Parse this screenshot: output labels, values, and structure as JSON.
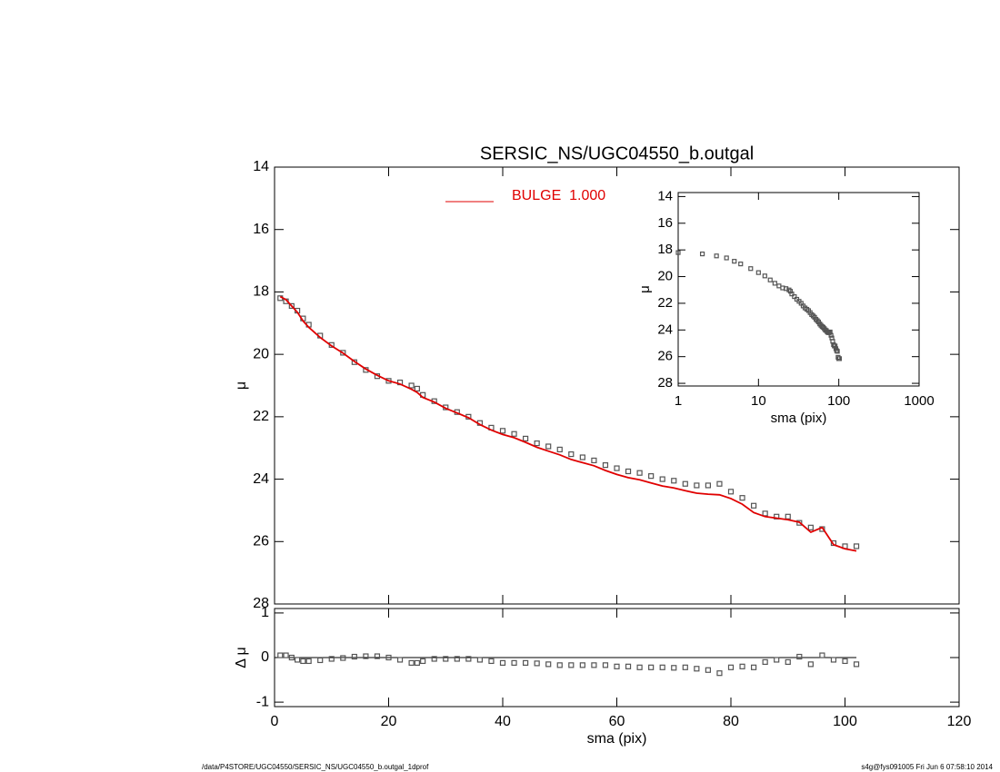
{
  "chart_data": [
    {
      "type": "line",
      "title": "SERSIC_NS/UGC04550_b.outgal",
      "ylabel": "μ",
      "x": [
        1,
        2,
        3,
        4,
        5,
        6,
        8,
        10,
        12,
        14,
        16,
        18,
        20,
        22,
        24,
        25,
        26,
        28,
        30,
        32,
        34,
        36,
        38,
        40,
        42,
        44,
        46,
        48,
        50,
        52,
        54,
        56,
        58,
        60,
        62,
        64,
        66,
        68,
        70,
        72,
        74,
        76,
        78,
        80,
        82,
        84,
        86,
        88,
        90,
        92,
        94,
        96,
        98,
        100,
        102
      ],
      "series": [
        {
          "color": "#555555",
          "style": "markers",
          "values": [
            18.2,
            18.3,
            18.45,
            18.6,
            18.85,
            19.05,
            19.4,
            19.7,
            19.95,
            20.25,
            20.5,
            20.7,
            20.85,
            20.9,
            21.0,
            21.1,
            21.3,
            21.5,
            21.7,
            21.85,
            22.0,
            22.2,
            22.35,
            22.45,
            22.55,
            22.7,
            22.85,
            22.95,
            23.05,
            23.2,
            23.3,
            23.4,
            23.55,
            23.65,
            23.75,
            23.8,
            23.9,
            24.0,
            24.05,
            24.15,
            24.2,
            24.2,
            24.15,
            24.4,
            24.6,
            24.85,
            25.1,
            25.2,
            25.2,
            25.4,
            25.55,
            25.6,
            26.05,
            26.15,
            26.15
          ]
        },
        {
          "name": "BULGE  1.000",
          "color": "#e00000",
          "style": "line",
          "values": [
            18.15,
            18.25,
            18.45,
            18.65,
            18.93,
            19.13,
            19.46,
            19.73,
            19.96,
            20.23,
            20.47,
            20.67,
            20.85,
            20.95,
            21.12,
            21.22,
            21.38,
            21.53,
            21.73,
            21.88,
            22.03,
            22.25,
            22.43,
            22.57,
            22.67,
            22.82,
            22.98,
            23.1,
            23.22,
            23.37,
            23.47,
            23.57,
            23.72,
            23.85,
            23.95,
            24.02,
            24.12,
            24.22,
            24.28,
            24.37,
            24.45,
            24.48,
            24.5,
            24.62,
            24.8,
            25.07,
            25.2,
            25.25,
            25.3,
            25.38,
            25.7,
            25.55,
            26.1,
            26.23,
            26.3
          ]
        }
      ],
      "xlim": [
        0,
        120
      ],
      "xticks": [
        0,
        20,
        40,
        60,
        80,
        100,
        120
      ],
      "show_xtick_labels": false,
      "ylim": [
        14,
        28
      ],
      "yticks": [
        14,
        16,
        18,
        20,
        22,
        24,
        26,
        28
      ],
      "y_inverted": true
    },
    {
      "type": "scatter",
      "xlabel": "sma (pix)",
      "ylabel": "Δ μ",
      "x": [
        1,
        2,
        3,
        4,
        5,
        6,
        8,
        10,
        12,
        14,
        16,
        18,
        20,
        22,
        24,
        25,
        26,
        28,
        30,
        32,
        34,
        36,
        38,
        40,
        42,
        44,
        46,
        48,
        50,
        52,
        54,
        56,
        58,
        60,
        62,
        64,
        66,
        68,
        70,
        72,
        74,
        76,
        78,
        80,
        82,
        84,
        86,
        88,
        90,
        92,
        94,
        96,
        98,
        100,
        102
      ],
      "series": [
        {
          "color": "#555555",
          "style": "markers",
          "values": [
            0.05,
            0.05,
            0,
            -0.05,
            -0.08,
            -0.08,
            -0.06,
            -0.03,
            -0.01,
            0.02,
            0.03,
            0.03,
            0,
            -0.05,
            -0.12,
            -0.12,
            -0.08,
            -0.03,
            -0.03,
            -0.03,
            -0.03,
            -0.05,
            -0.08,
            -0.12,
            -0.12,
            -0.12,
            -0.13,
            -0.15,
            -0.17,
            -0.17,
            -0.17,
            -0.17,
            -0.17,
            -0.2,
            -0.2,
            -0.22,
            -0.22,
            -0.22,
            -0.23,
            -0.22,
            -0.25,
            -0.28,
            -0.35,
            -0.22,
            -0.2,
            -0.22,
            -0.1,
            -0.05,
            -0.1,
            0.02,
            -0.15,
            0.05,
            -0.05,
            -0.08,
            -0.15
          ]
        }
      ],
      "xlim": [
        0,
        120
      ],
      "xticks": [
        0,
        20,
        40,
        60,
        80,
        100,
        120
      ],
      "show_xtick_labels": true,
      "ylim": [
        -1.1,
        1.1
      ],
      "yticks": [
        -1,
        0,
        1
      ],
      "y_inverted": false,
      "zero_line": true
    },
    {
      "type": "scatter",
      "xlabel": "sma (pix)",
      "ylabel": "μ",
      "xscale": "log",
      "x": [
        1,
        2,
        3,
        4,
        5,
        6,
        8,
        10,
        12,
        14,
        16,
        18,
        20,
        22,
        24,
        25,
        26,
        28,
        30,
        32,
        34,
        36,
        38,
        40,
        42,
        44,
        46,
        48,
        50,
        52,
        54,
        56,
        58,
        60,
        62,
        64,
        66,
        68,
        70,
        72,
        74,
        76,
        78,
        80,
        82,
        84,
        86,
        88,
        90,
        92,
        94,
        96,
        98,
        100,
        102
      ],
      "series": [
        {
          "color": "#555555",
          "style": "markers",
          "values": [
            18.2,
            18.3,
            18.45,
            18.6,
            18.85,
            19.05,
            19.4,
            19.7,
            19.95,
            20.25,
            20.5,
            20.7,
            20.85,
            20.9,
            21.0,
            21.1,
            21.3,
            21.5,
            21.7,
            21.85,
            22.0,
            22.2,
            22.35,
            22.45,
            22.55,
            22.7,
            22.85,
            22.95,
            23.05,
            23.2,
            23.3,
            23.4,
            23.55,
            23.65,
            23.75,
            23.8,
            23.9,
            24.0,
            24.05,
            24.15,
            24.2,
            24.2,
            24.15,
            24.4,
            24.6,
            24.85,
            25.1,
            25.2,
            25.2,
            25.4,
            25.55,
            25.6,
            26.05,
            26.15,
            26.15
          ]
        }
      ],
      "xlim": [
        1,
        1000
      ],
      "xticks": [
        1,
        10,
        100,
        1000
      ],
      "show_xtick_labels": true,
      "ylim": [
        13.7,
        28.2
      ],
      "yticks": [
        14,
        16,
        18,
        20,
        22,
        24,
        26,
        28
      ],
      "y_inverted": true
    }
  ],
  "footer": {
    "left": "/data/P4STORE/UGC04550/SERSIC_NS/UGC04550_b.outgal_1dprof",
    "right": "s4g@fys091005  Fri Jun  6 07:58:10 2014"
  }
}
